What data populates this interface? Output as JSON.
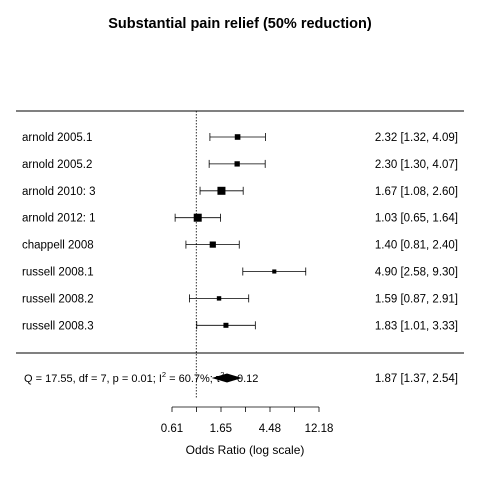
{
  "chart_data": {
    "type": "forest",
    "title": "Substantial pain relief (50% reduction)",
    "xlabel": "Odds Ratio (log scale)",
    "x_scale": "log",
    "reference_value": 1,
    "x_ticks": [
      0.61,
      1.65,
      4.48,
      12.18
    ],
    "x_tick_labels": [
      "0.61",
      "1.65",
      "4.48",
      "12.18"
    ],
    "studies": [
      {
        "label": "arnold 2005.1",
        "or": 2.32,
        "lower": 1.32,
        "upper": 4.09,
        "ci_text": "2.32 [1.32, 4.09]",
        "weight": 0.6
      },
      {
        "label": "arnold 2005.2",
        "or": 2.3,
        "lower": 1.3,
        "upper": 4.07,
        "ci_text": "2.30 [1.30, 4.07]",
        "weight": 0.55
      },
      {
        "label": "arnold 2010: 3",
        "or": 1.67,
        "lower": 1.08,
        "upper": 2.6,
        "ci_text": "1.67 [1.08, 2.60]",
        "weight": 1.0
      },
      {
        "label": "arnold 2012: 1",
        "or": 1.03,
        "lower": 0.65,
        "upper": 1.64,
        "ci_text": "1.03 [0.65, 1.64]",
        "weight": 1.0
      },
      {
        "label": "chappell 2008",
        "or": 1.4,
        "lower": 0.81,
        "upper": 2.4,
        "ci_text": "1.40 [0.81, 2.40]",
        "weight": 0.7
      },
      {
        "label": "russell 2008.1",
        "or": 4.9,
        "lower": 2.58,
        "upper": 9.3,
        "ci_text": "4.90 [2.58, 9.30]",
        "weight": 0.35
      },
      {
        "label": "russell 2008.2",
        "or": 1.59,
        "lower": 0.87,
        "upper": 2.91,
        "ci_text": "1.59 [0.87, 2.91]",
        "weight": 0.4
      },
      {
        "label": "russell 2008.3",
        "or": 1.83,
        "lower": 1.01,
        "upper": 3.33,
        "ci_text": "1.83 [1.01, 3.33]",
        "weight": 0.5
      }
    ],
    "summary": {
      "or": 1.87,
      "lower": 1.37,
      "upper": 2.54,
      "ci_text": "1.87 [1.37, 2.54]",
      "q_text": "Q = 17.55, df = 7, p = 0.01; I",
      "i2_sup": "2",
      "i2_value_text": " = 60.7%; τ",
      "tau_sup": "2",
      "tau_value_text": " = 0.12"
    }
  }
}
